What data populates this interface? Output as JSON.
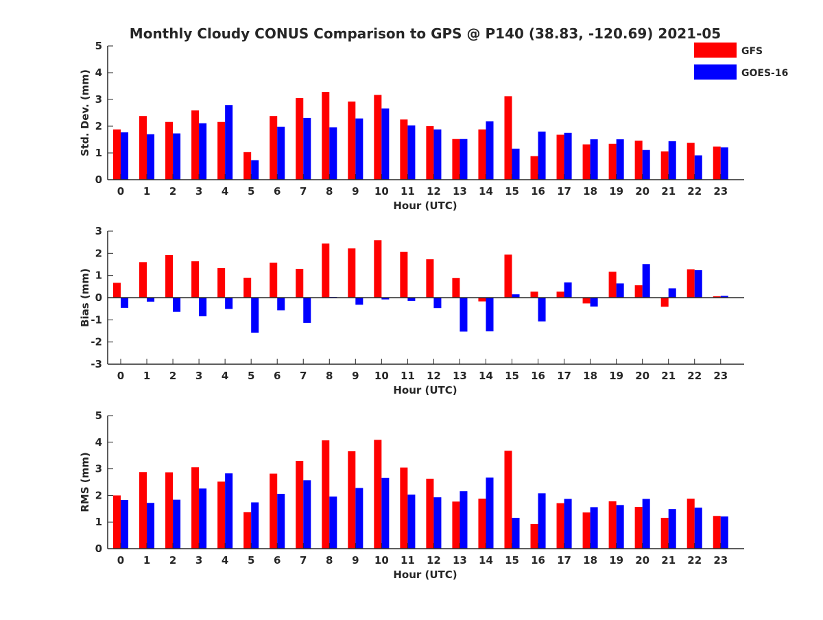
{
  "figure": {
    "title": "Monthly Cloudy CONUS Comparison to GPS @ P140 (38.83, -120.69) 2021-05"
  },
  "legend": {
    "placement": "top-right",
    "items": [
      {
        "name": "GFS",
        "color": "#ff0000"
      },
      {
        "name": "GOES-16",
        "color": "#0000ff"
      }
    ]
  },
  "chart_data": [
    {
      "type": "bar",
      "title": "Monthly Cloudy CONUS Comparison to GPS @ P140 (38.83, -120.69) 2021-05",
      "xlabel": "Hour (UTC)",
      "ylabel": "Std. Dev. (mm)",
      "ylim": [
        0,
        5
      ],
      "yticks": [
        0,
        1,
        2,
        3,
        4,
        5
      ],
      "grid": false,
      "categories": [
        "0",
        "1",
        "2",
        "3",
        "4",
        "5",
        "6",
        "7",
        "8",
        "9",
        "10",
        "11",
        "12",
        "13",
        "14",
        "15",
        "16",
        "17",
        "18",
        "19",
        "20",
        "21",
        "22",
        "23"
      ],
      "series": [
        {
          "name": "GFS",
          "color": "#ff0000",
          "values": [
            1.88,
            2.38,
            2.16,
            2.59,
            2.16,
            1.03,
            2.38,
            3.05,
            3.28,
            2.92,
            3.17,
            2.25,
            2.0,
            1.52,
            1.88,
            3.12,
            0.88,
            1.68,
            1.32,
            1.34,
            1.46,
            1.06,
            1.38,
            1.24
          ]
        },
        {
          "name": "GOES-16",
          "color": "#0000ff",
          "values": [
            1.77,
            1.7,
            1.73,
            2.11,
            2.79,
            0.73,
            1.98,
            2.31,
            1.96,
            2.29,
            2.66,
            2.03,
            1.88,
            1.52,
            2.18,
            1.16,
            1.8,
            1.75,
            1.51,
            1.51,
            1.11,
            1.44,
            0.91,
            1.21
          ]
        }
      ]
    },
    {
      "type": "bar",
      "xlabel": "Hour (UTC)",
      "ylabel": "Bias (mm)",
      "ylim": [
        -3,
        3
      ],
      "yticks": [
        -3,
        -2,
        -1,
        0,
        1,
        2,
        3
      ],
      "grid": false,
      "categories": [
        "0",
        "1",
        "2",
        "3",
        "4",
        "5",
        "6",
        "7",
        "8",
        "9",
        "10",
        "11",
        "12",
        "13",
        "14",
        "15",
        "16",
        "17",
        "18",
        "19",
        "20",
        "21",
        "22",
        "23"
      ],
      "series": [
        {
          "name": "GFS",
          "color": "#ff0000",
          "values": [
            0.67,
            1.6,
            1.92,
            1.64,
            1.33,
            0.9,
            1.58,
            1.3,
            2.44,
            2.22,
            2.59,
            2.07,
            1.73,
            0.89,
            -0.17,
            1.94,
            0.27,
            0.27,
            -0.26,
            1.17,
            0.56,
            -0.41,
            1.28,
            0.06
          ]
        },
        {
          "name": "GOES-16",
          "color": "#0000ff",
          "values": [
            -0.46,
            -0.18,
            -0.64,
            -0.84,
            -0.51,
            -1.58,
            -0.57,
            -1.14,
            0.03,
            -0.32,
            -0.08,
            -0.15,
            -0.47,
            -1.53,
            -1.52,
            0.15,
            -1.07,
            0.69,
            -0.4,
            0.64,
            1.51,
            0.42,
            1.24,
            0.08
          ]
        }
      ]
    },
    {
      "type": "bar",
      "xlabel": "Hour (UTC)",
      "ylabel": "RMS (mm)",
      "ylim": [
        0,
        5
      ],
      "yticks": [
        0,
        1,
        2,
        3,
        4,
        5
      ],
      "grid": false,
      "categories": [
        "0",
        "1",
        "2",
        "3",
        "4",
        "5",
        "6",
        "7",
        "8",
        "9",
        "10",
        "11",
        "12",
        "13",
        "14",
        "15",
        "16",
        "17",
        "18",
        "19",
        "20",
        "21",
        "22",
        "23"
      ],
      "series": [
        {
          "name": "GFS",
          "color": "#ff0000",
          "values": [
            2.0,
            2.88,
            2.87,
            3.06,
            2.52,
            1.37,
            2.82,
            3.3,
            4.07,
            3.66,
            4.09,
            3.05,
            2.63,
            1.77,
            1.88,
            3.68,
            0.93,
            1.71,
            1.36,
            1.78,
            1.57,
            1.16,
            1.88,
            1.23
          ]
        },
        {
          "name": "GOES-16",
          "color": "#0000ff",
          "values": [
            1.83,
            1.72,
            1.84,
            2.26,
            2.83,
            1.74,
            2.06,
            2.57,
            1.96,
            2.28,
            2.66,
            2.03,
            1.93,
            2.16,
            2.67,
            1.16,
            2.08,
            1.87,
            1.56,
            1.64,
            1.87,
            1.49,
            1.54,
            1.21
          ]
        }
      ]
    }
  ]
}
